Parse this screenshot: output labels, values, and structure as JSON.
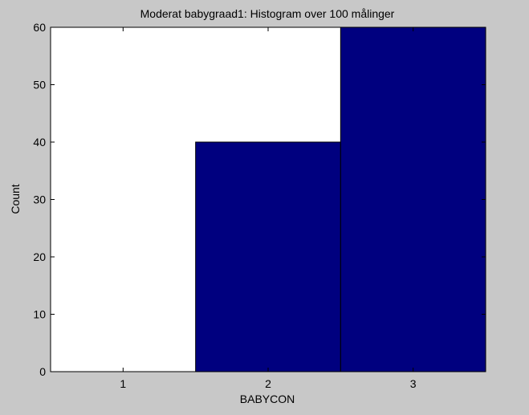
{
  "chart_data": {
    "type": "bar",
    "title": "Moderat babygraad1: Histogram over 100 målinger",
    "xlabel": "BABYCON",
    "ylabel": "Count",
    "categories": [
      "1",
      "2",
      "3"
    ],
    "values": [
      0,
      40,
      60
    ],
    "ylim": [
      0,
      60
    ],
    "yticks": [
      "0",
      "10",
      "20",
      "30",
      "40",
      "50",
      "60"
    ],
    "grid": false,
    "colors": {
      "bar_fill": "#00007f",
      "bar_edge": "#000000",
      "plot_background": "#ffffff",
      "figure_background": "#c8c8c8"
    }
  }
}
